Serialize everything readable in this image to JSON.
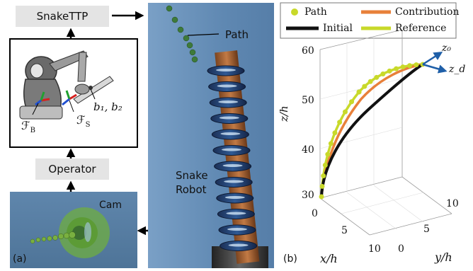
{
  "panel_a": {
    "label": "(a)",
    "snake_ttp_label": "SnakeTTP",
    "operator_label": "Operator",
    "cam_label": "Cam",
    "frame_b": "ℱ",
    "frame_b_sub": "B",
    "frame_s": "ℱ",
    "frame_s_sub": "S",
    "buttons_label": "b₁, b₂"
  },
  "robot_view": {
    "path_label": "Path",
    "snake_robot_line1": "Snake",
    "snake_robot_line2": "Robot"
  },
  "panel_b": {
    "label": "(b)",
    "legend": {
      "path": "Path",
      "contribution": "Contribution",
      "initial": "Initial",
      "reference": "Reference"
    },
    "vector_z0": "z₀",
    "vector_zd": "z_d",
    "chart_data": {
      "type": "line3d",
      "xlabel": "x/h",
      "ylabel": "y/h",
      "zlabel": "z/h",
      "z_ticks": [
        "30",
        "40",
        "50",
        "60"
      ],
      "x_ticks": [
        "0",
        "5",
        "10"
      ],
      "y_ticks": [
        "0",
        "5",
        "10"
      ],
      "colors": {
        "path": "#c8d92a",
        "contribution": "#e8803a",
        "initial": "#111111",
        "reference": "#c8d92a"
      }
    }
  }
}
